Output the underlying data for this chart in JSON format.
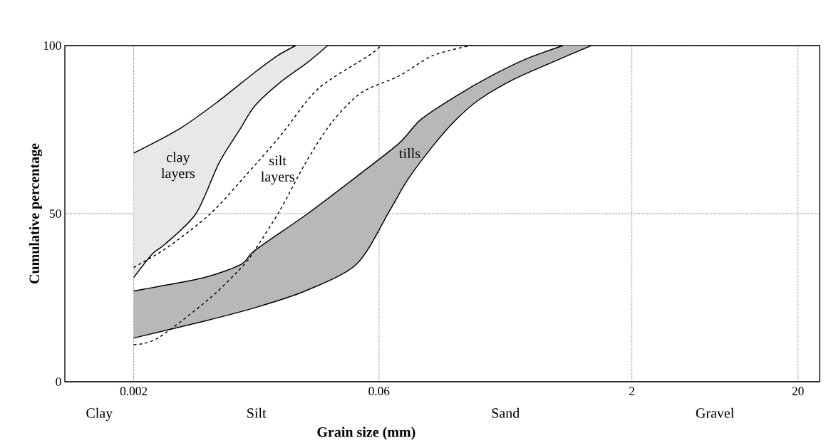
{
  "chart_data": {
    "type": "line",
    "xlabel": "Grain size (mm)",
    "ylabel": "Cumulative percentage",
    "log": "x",
    "grid": true,
    "xlim": [
      0.00077,
      27
    ],
    "ylim": [
      0,
      100
    ],
    "xticks": [
      0.002,
      0.06,
      2,
      20
    ],
    "yticks": [
      0,
      50,
      100
    ],
    "series": [
      {
        "color": "#000000",
        "line_style": "solid",
        "x": [
          0.002,
          0.00371,
          0.0063,
          0.0107,
          0.0147,
          0.0189
        ],
        "values": [
          68,
          75,
          83,
          92,
          97,
          100
        ]
      },
      {
        "color": "#000000",
        "line_style": "solid",
        "x": [
          0.002,
          0.00259,
          0.0031,
          0.00474,
          0.00652,
          0.0087,
          0.0107,
          0.0152,
          0.0223,
          0.0294
        ],
        "values": [
          31,
          38,
          41,
          50,
          65,
          75,
          82,
          89,
          95,
          100
        ]
      },
      {
        "color": "#000000",
        "line_style": "dashed",
        "x": [
          0.002,
          0.0032,
          0.0058,
          0.0093,
          0.0152,
          0.0256,
          0.052,
          0.0617
        ],
        "values": [
          34,
          40,
          50,
          61,
          73,
          87,
          97,
          100
        ]
      },
      {
        "color": "#000000",
        "line_style": "dashed",
        "x": [
          0.002,
          0.0028,
          0.0058,
          0.0093,
          0.011,
          0.0152,
          0.0216,
          0.031,
          0.047,
          0.0795,
          0.126,
          0.213
        ],
        "values": [
          11,
          13,
          25,
          35,
          40,
          51,
          65,
          77,
          86,
          91,
          97,
          100
        ]
      },
      {
        "color": "#000000",
        "line_style": "solid",
        "x": [
          0.002,
          0.0053,
          0.0089,
          0.0107,
          0.0223,
          0.0439,
          0.0795,
          0.107,
          0.175,
          0.285,
          0.46,
          0.77
        ],
        "values": [
          27,
          31,
          35,
          39,
          50,
          61,
          71,
          78,
          85,
          91,
          96,
          100
        ]
      },
      {
        "color": "#000000",
        "line_style": "solid",
        "x": [
          0.002,
          0.0053,
          0.0107,
          0.0216,
          0.044,
          0.0697,
          0.089,
          0.126,
          0.175,
          0.242,
          0.39,
          0.66,
          1.14
        ],
        "values": [
          13,
          18,
          22,
          27,
          35,
          51,
          60,
          70,
          78,
          84,
          90,
          95,
          100
        ]
      }
    ],
    "annotations": [
      "clay layers",
      "silt layers",
      "tills",
      "Clay",
      "Silt",
      "Sand",
      "Gravel"
    ]
  }
}
